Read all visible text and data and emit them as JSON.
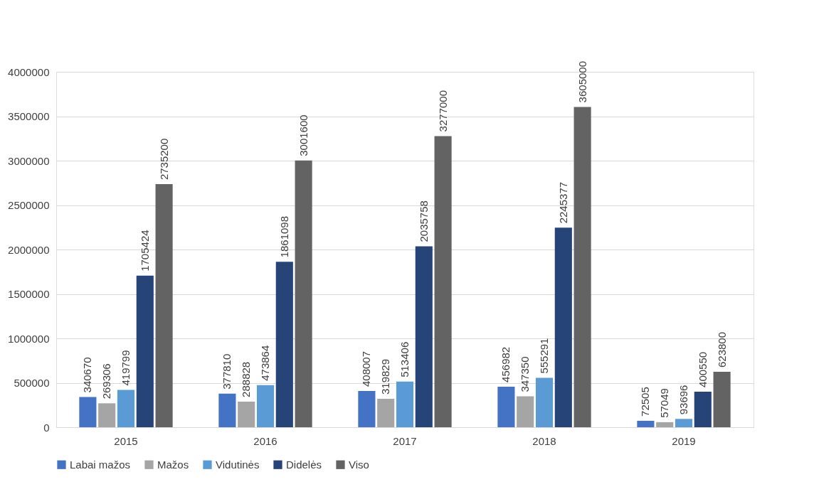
{
  "chart_data": {
    "type": "bar",
    "categories": [
      "2015",
      "2016",
      "2017",
      "2018",
      "2019"
    ],
    "series": [
      {
        "name": "Labai mažos",
        "color": "#4472c4",
        "values": [
          340670,
          377810,
          408007,
          456982,
          72505
        ]
      },
      {
        "name": "Mažos",
        "color": "#a5a5a5",
        "values": [
          269306,
          288828,
          319829,
          347350,
          57049
        ]
      },
      {
        "name": "Vidutinės",
        "color": "#5b9bd5",
        "values": [
          419799,
          473864,
          513406,
          555291,
          93696
        ]
      },
      {
        "name": "Didelės",
        "color": "#264478",
        "values": [
          1705424,
          1861098,
          2035758,
          2245377,
          400550
        ]
      },
      {
        "name": "Viso",
        "color": "#636363",
        "values": [
          2735200,
          3001600,
          3277000,
          3605000,
          623800
        ]
      }
    ],
    "ylim": [
      0,
      4000000
    ],
    "yticks": [
      0,
      500000,
      1000000,
      1500000,
      2000000,
      2500000,
      3000000,
      3500000,
      4000000
    ],
    "grid": "y",
    "legend": "bottom",
    "data_labels": true
  }
}
